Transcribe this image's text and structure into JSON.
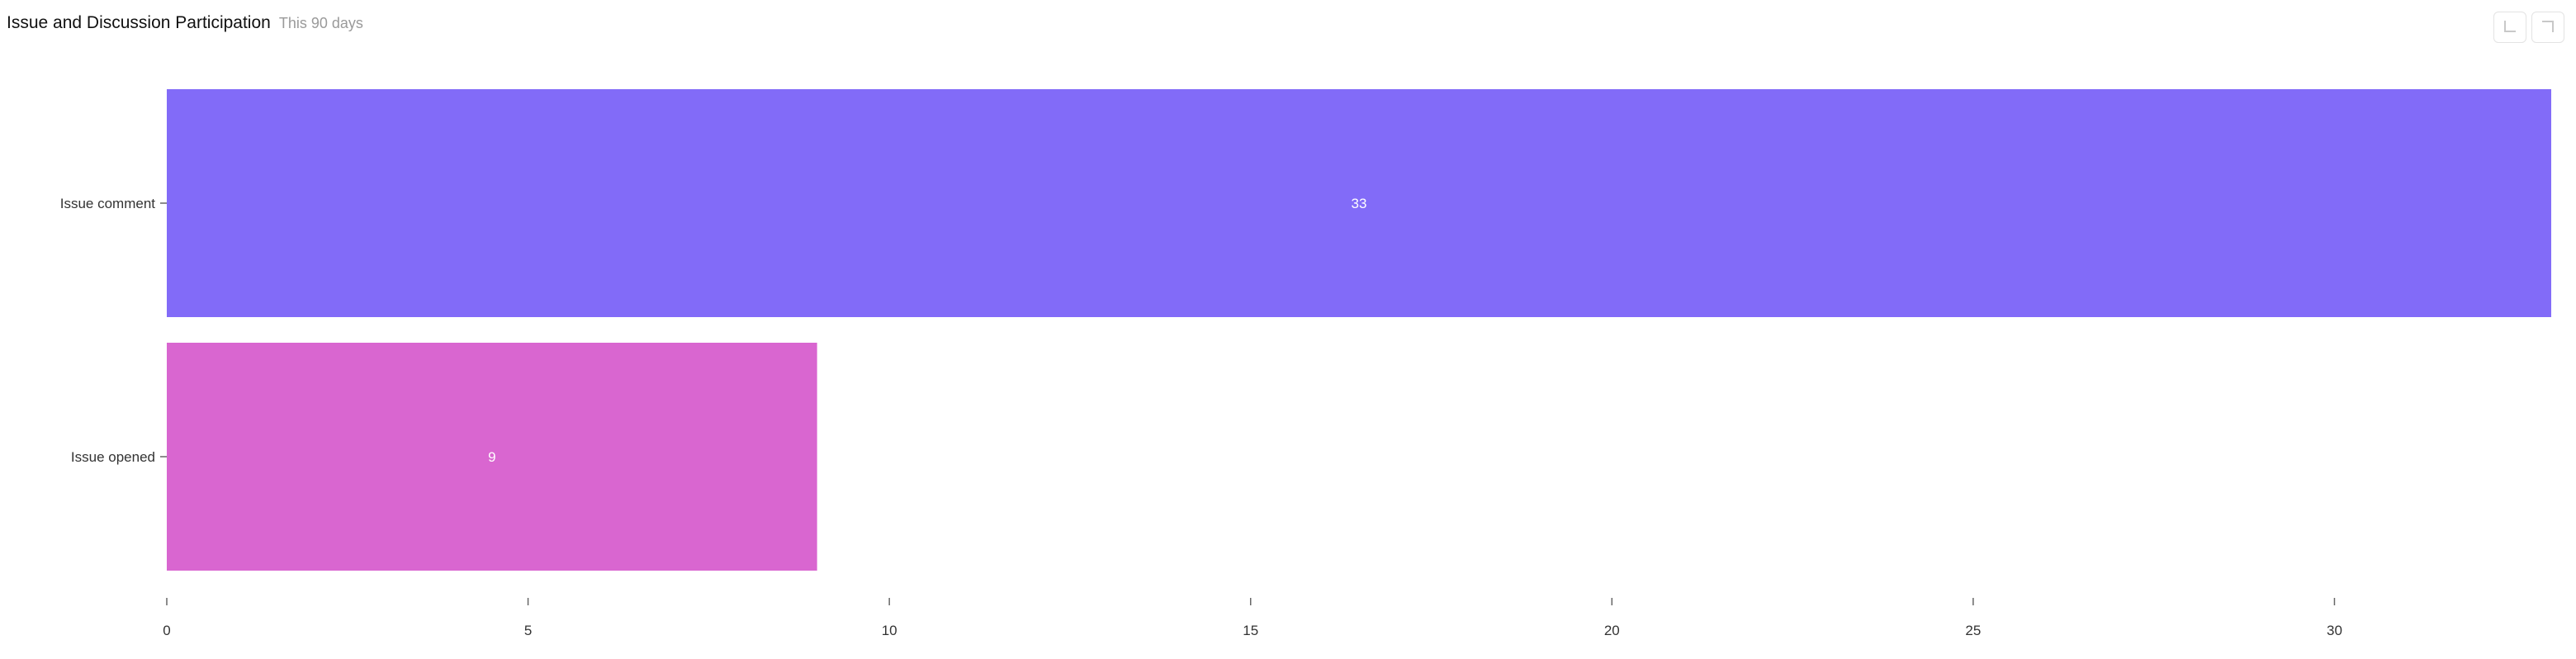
{
  "header": {
    "title": "Issue and Discussion Participation",
    "subtitle": "This 90 days"
  },
  "toolbar": {
    "buttons": [
      {
        "icon": "download-icon"
      },
      {
        "icon": "expand-icon"
      }
    ]
  },
  "chart_data": {
    "type": "bar",
    "orientation": "horizontal",
    "categories": [
      "Issue comment",
      "Issue opened"
    ],
    "values": [
      33,
      9
    ],
    "colors": [
      "#826bf8",
      "#d966d0"
    ],
    "xlim": [
      0,
      33
    ],
    "xticks": [
      0,
      5,
      10,
      15,
      20,
      25,
      30
    ],
    "data_labels": [
      "33",
      "9"
    ],
    "grid": false,
    "legend": "none"
  }
}
